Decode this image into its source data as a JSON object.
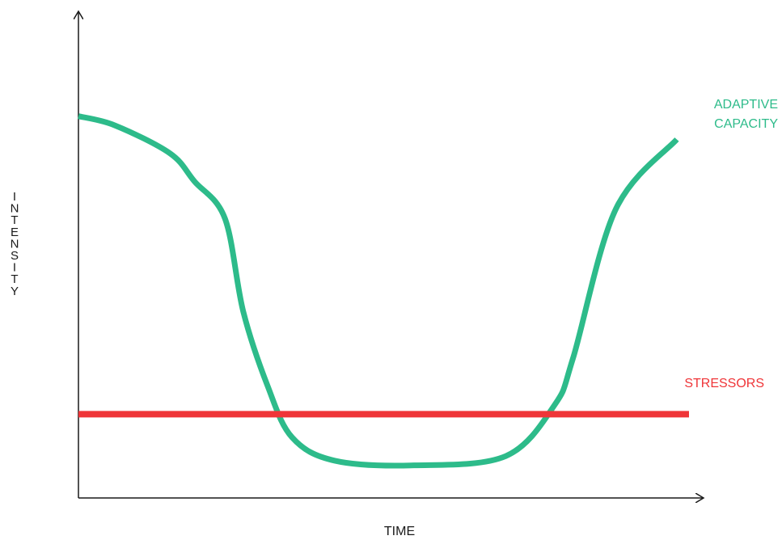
{
  "chart_data": {
    "type": "line",
    "title": "",
    "xlabel": "TIME",
    "ylabel": "INTENSITY",
    "xlim": [
      0,
      100
    ],
    "ylim": [
      0,
      100
    ],
    "grid": false,
    "series": [
      {
        "name": "ADAPTIVE CAPACITY",
        "color": "#2dbb8a",
        "x": [
          0,
          6,
          15,
          19,
          24,
          27,
          31,
          35,
          42,
          55,
          70,
          78,
          81,
          88,
          98
        ],
        "y": [
          82,
          80,
          74,
          68,
          60,
          40,
          24,
          13,
          8,
          7,
          9,
          20,
          30,
          62,
          77
        ]
      },
      {
        "name": "STRESSORS",
        "color": "#ef3538",
        "x": [
          0,
          100
        ],
        "y": [
          18,
          18
        ]
      }
    ]
  }
}
